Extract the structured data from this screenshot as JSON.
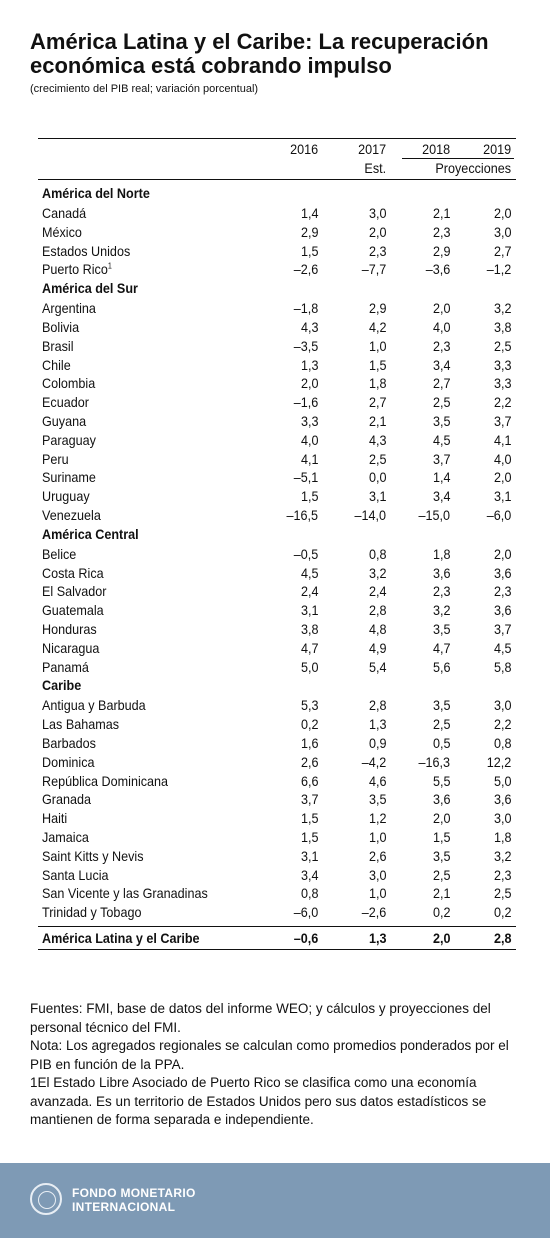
{
  "title": "América Latina y el Caribe: La recuperación económica está cobrando impulso",
  "subtitle": "(crecimiento del PIB real; variación porcentual)",
  "table": {
    "years": [
      "2016",
      "2017",
      "2018",
      "2019"
    ],
    "est_label": "Est.",
    "proj_label": "Proyecciones",
    "regions": [
      {
        "name": "América del Norte",
        "rows": [
          {
            "name": "Canadá",
            "values": [
              "1,4",
              "3,0",
              "2,1",
              "2,0"
            ]
          },
          {
            "name": "México",
            "values": [
              "2,9",
              "2,0",
              "2,3",
              "3,0"
            ]
          },
          {
            "name": "Estados Unidos",
            "values": [
              "1,5",
              "2,3",
              "2,9",
              "2,7"
            ]
          },
          {
            "name": "Puerto Rico",
            "sup": "1",
            "values": [
              "–2,6",
              "–7,7",
              "–3,6",
              "–1,2"
            ]
          }
        ]
      },
      {
        "name": "América del Sur",
        "rows": [
          {
            "name": "Argentina",
            "values": [
              "–1,8",
              "2,9",
              "2,0",
              "3,2"
            ]
          },
          {
            "name": "Bolivia",
            "values": [
              "4,3",
              "4,2",
              "4,0",
              "3,8"
            ]
          },
          {
            "name": "Brasil",
            "values": [
              "–3,5",
              "1,0",
              "2,3",
              "2,5"
            ]
          },
          {
            "name": "Chile",
            "values": [
              "1,3",
              "1,5",
              "3,4",
              "3,3"
            ]
          },
          {
            "name": "Colombia",
            "values": [
              "2,0",
              "1,8",
              "2,7",
              "3,3"
            ]
          },
          {
            "name": "Ecuador",
            "values": [
              "–1,6",
              "2,7",
              "2,5",
              "2,2"
            ]
          },
          {
            "name": "Guyana",
            "values": [
              "3,3",
              "2,1",
              "3,5",
              "3,7"
            ]
          },
          {
            "name": "Paraguay",
            "values": [
              "4,0",
              "4,3",
              "4,5",
              "4,1"
            ]
          },
          {
            "name": "Peru",
            "values": [
              "4,1",
              "2,5",
              "3,7",
              "4,0"
            ]
          },
          {
            "name": "Suriname",
            "values": [
              "–5,1",
              "0,0",
              "1,4",
              "2,0"
            ]
          },
          {
            "name": "Uruguay",
            "values": [
              "1,5",
              "3,1",
              "3,4",
              "3,1"
            ]
          },
          {
            "name": "Venezuela",
            "values": [
              "–16,5",
              "–14,0",
              "–15,0",
              "–6,0"
            ]
          }
        ]
      },
      {
        "name": "América Central",
        "rows": [
          {
            "name": "Belice",
            "values": [
              "–0,5",
              "0,8",
              "1,8",
              "2,0"
            ]
          },
          {
            "name": "Costa Rica",
            "values": [
              "4,5",
              "3,2",
              "3,6",
              "3,6"
            ]
          },
          {
            "name": "El Salvador",
            "values": [
              "2,4",
              "2,4",
              "2,3",
              "2,3"
            ]
          },
          {
            "name": "Guatemala",
            "values": [
              "3,1",
              "2,8",
              "3,2",
              "3,6"
            ]
          },
          {
            "name": "Honduras",
            "values": [
              "3,8",
              "4,8",
              "3,5",
              "3,7"
            ]
          },
          {
            "name": "Nicaragua",
            "values": [
              "4,7",
              "4,9",
              "4,7",
              "4,5"
            ]
          },
          {
            "name": "Panamá",
            "values": [
              "5,0",
              "5,4",
              "5,6",
              "5,8"
            ]
          }
        ]
      },
      {
        "name": "Caribe",
        "rows": [
          {
            "name": "Antigua y Barbuda",
            "values": [
              "5,3",
              "2,8",
              "3,5",
              "3,0"
            ]
          },
          {
            "name": "Las Bahamas",
            "values": [
              "0,2",
              "1,3",
              "2,5",
              "2,2"
            ]
          },
          {
            "name": "Barbados",
            "values": [
              "1,6",
              "0,9",
              "0,5",
              "0,8"
            ]
          },
          {
            "name": "Dominica",
            "values": [
              "2,6",
              "–4,2",
              "–16,3",
              "12,2"
            ]
          },
          {
            "name": "República Dominicana",
            "values": [
              "6,6",
              "4,6",
              "5,5",
              "5,0"
            ]
          },
          {
            "name": "Granada",
            "values": [
              "3,7",
              "3,5",
              "3,6",
              "3,6"
            ]
          },
          {
            "name": "Haiti",
            "values": [
              "1,5",
              "1,2",
              "2,0",
              "3,0"
            ]
          },
          {
            "name": "Jamaica",
            "values": [
              "1,5",
              "1,0",
              "1,5",
              "1,8"
            ]
          },
          {
            "name": "Saint Kitts y Nevis",
            "values": [
              "3,1",
              "2,6",
              "3,5",
              "3,2"
            ]
          },
          {
            "name": "Santa Lucia",
            "values": [
              "3,4",
              "3,0",
              "2,5",
              "2,3"
            ]
          },
          {
            "name": "San Vicente y las Granadinas",
            "values": [
              "0,8",
              "1,0",
              "2,1",
              "2,5"
            ]
          },
          {
            "name": "Trinidad y Tobago",
            "values": [
              "–6,0",
              "–2,6",
              "0,2",
              "0,2"
            ]
          }
        ]
      }
    ],
    "total": {
      "name": "América Latina y el Caribe",
      "values": [
        "–0,6",
        "1,3",
        "2,0",
        "2,8"
      ]
    }
  },
  "notes": [
    "Fuentes: FMI, base de datos del informe WEO; y cálculos y proyecciones del personal técnico del FMI.",
    "Nota: Los agregados regionales se calculan como promedios ponderados por el PIB en función de la PPA.",
    "1El Estado Libre Asociado de Puerto Rico se clasifica como una economía avanzada. Es un territorio de Estados Unidos pero sus datos estadísticos se mantienen de forma separada e independiente."
  ],
  "footer": {
    "org_line1": "FONDO MONETARIO",
    "org_line2": "INTERNACIONAL",
    "logo_icon": "imf-seal-icon",
    "background": "#7e9ab5"
  }
}
